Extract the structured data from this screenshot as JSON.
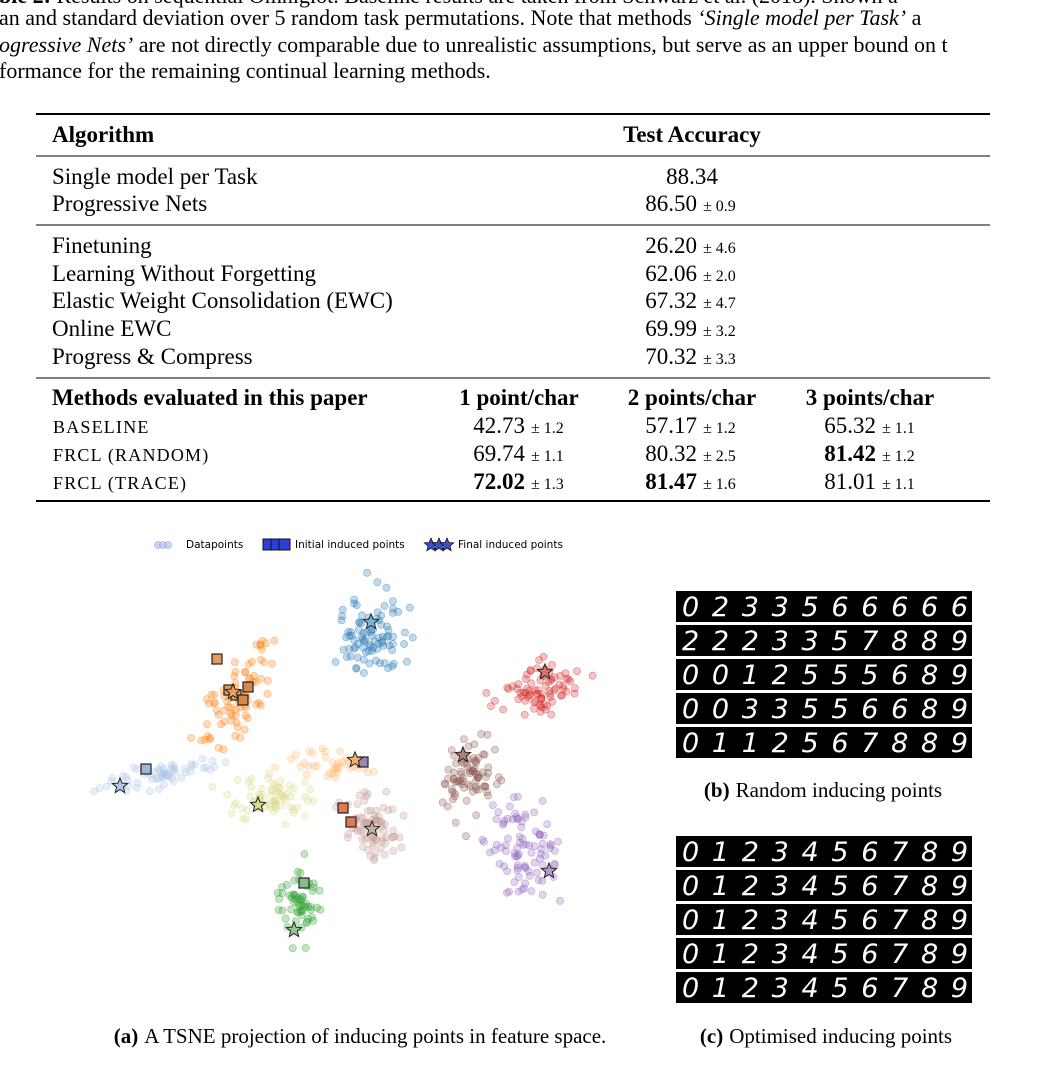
{
  "caption_lines": [
    [
      {
        "text": "ble 2:",
        "bold": true
      },
      {
        "text": " Results on sequential Omniglot. Baseline results are taken from Schwarz et al. (2018). Shown a"
      }
    ],
    [
      {
        "text": "an and standard deviation over 5 random task permutations. Note that methods "
      },
      {
        "text": "‘Single model per Task’",
        "italic": true
      },
      {
        "text": " a"
      }
    ],
    [
      {
        "text": "ogressive Nets’",
        "italic": true
      },
      {
        "text": " are not directly comparable due to unrealistic assumptions, but serve as an upper bound on t"
      }
    ],
    [
      {
        "text": "formance for the remaining continual learning methods."
      }
    ]
  ],
  "table": {
    "header": [
      "Algorithm",
      "Test Accuracy"
    ],
    "upper_bounds": [
      {
        "name": "Single model per Task",
        "value": "88.34"
      },
      {
        "name": "Progressive Nets",
        "value": "86.50",
        "std": "± 0.9"
      }
    ],
    "baselines": [
      {
        "name": "Finetuning",
        "value": "26.20",
        "std": "± 4.6"
      },
      {
        "name": "Learning Without Forgetting",
        "value": "62.06",
        "std": "± 2.0"
      },
      {
        "name": "Elastic Weight Consolidation (EWC)",
        "value": "67.32",
        "std": "± 4.7"
      },
      {
        "name": "Online EWC",
        "value": "69.99",
        "std": "± 3.2"
      },
      {
        "name": "Progress & Compress",
        "value": "70.32",
        "std": "± 3.3"
      }
    ],
    "methods_header": [
      "Methods evaluated in this paper",
      "1 point/char",
      "2 points/char",
      "3 points/char"
    ],
    "methods": [
      {
        "name": "BASELINE",
        "cells": [
          {
            "value": "42.73",
            "std": "± 1.2"
          },
          {
            "value": "57.17",
            "std": "± 1.2"
          },
          {
            "value": "65.32",
            "std": "± 1.1"
          }
        ]
      },
      {
        "name": "FRCL (RANDOM)",
        "cells": [
          {
            "value": "69.74",
            "std": "± 1.1"
          },
          {
            "value": "80.32",
            "std": "± 2.5"
          },
          {
            "value": "81.42",
            "std": "± 1.2",
            "bold": true
          }
        ]
      },
      {
        "name": "FRCL (TRACE)",
        "cells": [
          {
            "value": "72.02",
            "std": "± 1.3",
            "bold": true
          },
          {
            "value": "81.47",
            "std": "± 1.6",
            "bold": true
          },
          {
            "value": "81.01",
            "std": "± 1.1"
          }
        ]
      }
    ]
  },
  "figure": {
    "legend": [
      "Datapoints",
      "Initial induced points",
      "Final induced points"
    ],
    "panel_a": {
      "label": "(a)",
      "caption": "A TSNE projection of inducing points in feature space."
    },
    "panel_b": {
      "label": "(b)",
      "caption": "Random inducing points",
      "rows": [
        "0233566666",
        "2223357889",
        "0012555689",
        "0033556689",
        "0112567889"
      ]
    },
    "panel_c": {
      "label": "(c)",
      "caption": "Optimised inducing points",
      "rows": [
        "0123456789",
        "0123456789",
        "0123456789",
        "0123456789",
        "0123456789"
      ]
    }
  }
}
